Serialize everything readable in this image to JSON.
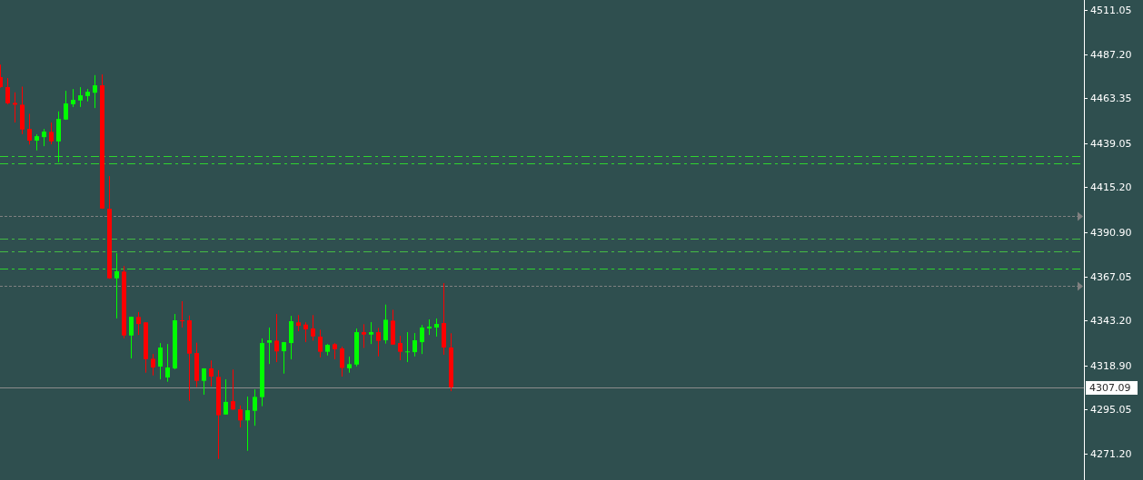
{
  "chart_data": {
    "type": "candlestick",
    "categories": [
      null,
      null,
      null,
      null,
      null,
      null,
      null,
      null,
      null,
      null,
      null,
      null,
      null,
      null,
      null,
      null,
      null,
      null,
      null,
      null,
      null,
      null,
      null,
      null,
      null,
      null,
      null,
      null,
      null,
      null,
      null,
      null,
      null,
      null,
      null,
      null,
      null,
      null,
      null,
      null,
      null,
      null,
      null,
      null,
      null,
      null,
      null,
      null,
      null,
      null,
      null,
      null,
      null,
      null,
      null,
      null,
      null,
      null,
      null,
      null,
      null,
      null,
      null,
      null,
      null,
      null,
      null,
      null,
      null,
      null,
      null,
      null,
      null,
      null,
      null,
      null,
      null,
      null,
      null,
      null,
      null,
      null,
      null,
      null,
      null,
      null,
      null,
      null,
      null,
      null,
      null,
      null,
      null,
      null,
      null,
      null,
      null,
      null,
      null,
      null,
      null,
      null,
      null,
      null,
      null,
      null,
      null,
      null,
      null,
      null,
      null,
      null,
      null,
      null,
      null,
      null,
      null,
      null,
      null,
      null,
      null,
      null,
      null,
      null,
      null,
      null,
      null,
      null,
      null,
      null,
      null,
      null,
      null,
      null,
      null,
      null,
      null,
      null,
      null,
      null,
      null,
      null,
      null,
      null,
      null,
      null,
      null,
      null,
      null,
      null
    ],
    "ohlc": [
      [
        4474.7,
        4481.5,
        4469.0,
        4469.4
      ],
      [
        4469.3,
        4474.2,
        4460.0,
        4460.6
      ],
      [
        4460.8,
        4466.5,
        4450.2,
        4459.8
      ],
      [
        4459.8,
        4469.6,
        4443.9,
        4446.4
      ],
      [
        4446.7,
        4454.9,
        4438.3,
        4440.4
      ],
      [
        4440.4,
        4443.8,
        4435.1,
        4442.8
      ],
      [
        4442.3,
        4446.7,
        4437.4,
        4445.3
      ],
      [
        4445.1,
        4450.2,
        4438.4,
        4440.0
      ],
      [
        4440.0,
        4456.2,
        4428.6,
        4452.1
      ],
      [
        4451.8,
        4467.3,
        4451.6,
        4460.5
      ],
      [
        4460.1,
        4468.3,
        4458.6,
        4462.4
      ],
      [
        4462.1,
        4469.3,
        4458.6,
        4464.9
      ],
      [
        4464.5,
        4468.3,
        4461.6,
        4466.8
      ],
      [
        4466.3,
        4475.8,
        4458.0,
        4470.3
      ],
      [
        4470.3,
        4476.2,
        4403.5,
        4403.7
      ],
      [
        4403.6,
        4421.2,
        4365.7,
        4366.0
      ],
      [
        4366.0,
        4379.6,
        4344.3,
        4369.8
      ],
      [
        4369.6,
        4372.6,
        4333.6,
        4335.1
      ],
      [
        4335.1,
        4345.3,
        4322.7,
        4345.2
      ],
      [
        4345.1,
        4347.8,
        4335.4,
        4341.3
      ],
      [
        4342.2,
        4342.3,
        4315.0,
        4322.3
      ],
      [
        4322.5,
        4325.1,
        4313.5,
        4317.8
      ],
      [
        4318.3,
        4331.0,
        4311.4,
        4328.6
      ],
      [
        4312.4,
        4330.5,
        4310.1,
        4317.8
      ],
      [
        4317.3,
        4346.7,
        4316.8,
        4343.3
      ],
      [
        4343.3,
        4353.6,
        4339.4,
        4342.8
      ],
      [
        4343.3,
        4345.9,
        4299.8,
        4325.3
      ],
      [
        4325.6,
        4331.2,
        4307.2,
        4310.6
      ],
      [
        4310.6,
        4317.4,
        4303.1,
        4317.3
      ],
      [
        4317.3,
        4321.6,
        4307.5,
        4312.9
      ],
      [
        4312.7,
        4316.3,
        4268.4,
        4292.0
      ],
      [
        4292.4,
        4311.4,
        4292.3,
        4299.2
      ],
      [
        4299.6,
        4316.7,
        4294.9,
        4295.1
      ],
      [
        4295.2,
        4297.3,
        4285.4,
        4289.2
      ],
      [
        4289.2,
        4302.1,
        4272.8,
        4294.7
      ],
      [
        4294.4,
        4306.0,
        4286.3,
        4301.9
      ],
      [
        4301.8,
        4333.5,
        4296.9,
        4331.0
      ],
      [
        4331.2,
        4339.4,
        4319.7,
        4332.5
      ],
      [
        4332.3,
        4346.7,
        4320.7,
        4326.5
      ],
      [
        4326.6,
        4331.6,
        4314.5,
        4331.5
      ],
      [
        4331.0,
        4345.7,
        4322.2,
        4342.8
      ],
      [
        4342.2,
        4346.1,
        4337.4,
        4340.3
      ],
      [
        4341.0,
        4342.2,
        4331.5,
        4338.4
      ],
      [
        4338.9,
        4346.1,
        4332.3,
        4334.6
      ],
      [
        4334.5,
        4338.2,
        4323.3,
        4326.3
      ],
      [
        4326.3,
        4330.5,
        4324.3,
        4330.0
      ],
      [
        4330.4,
        4331.0,
        4322.3,
        4327.7
      ],
      [
        4328.1,
        4329.1,
        4312.9,
        4317.6
      ],
      [
        4317.4,
        4323.7,
        4315.0,
        4319.6
      ],
      [
        4319.4,
        4338.9,
        4318.4,
        4336.9
      ],
      [
        4336.9,
        4341.2,
        4328.4,
        4335.6
      ],
      [
        4335.6,
        4342.3,
        4330.5,
        4336.9
      ],
      [
        4336.9,
        4339.2,
        4323.8,
        4332.2
      ],
      [
        4332.5,
        4351.8,
        4330.7,
        4343.6
      ],
      [
        4343.1,
        4349.0,
        4330.1,
        4330.2
      ],
      [
        4331.0,
        4334.9,
        4321.7,
        4326.3
      ],
      [
        4326.1,
        4336.9,
        4320.7,
        4326.5
      ],
      [
        4326.1,
        4336.4,
        4323.8,
        4332.5
      ],
      [
        4331.5,
        4340.8,
        4325.1,
        4339.4
      ],
      [
        4338.9,
        4343.8,
        4335.4,
        4339.9
      ],
      [
        4339.4,
        4344.3,
        4334.5,
        4341.3
      ],
      [
        4341.8,
        4363.4,
        4324.7,
        4328.6
      ],
      [
        4328.6,
        4336.3,
        4305.0,
        4307.09
      ],
      null,
      null,
      null,
      null,
      null,
      null,
      null,
      null,
      null,
      null,
      null,
      null,
      null,
      null,
      null,
      null,
      null,
      null,
      null,
      null,
      null,
      null,
      null,
      null,
      null,
      null,
      null,
      null,
      null,
      null,
      null,
      null,
      null,
      null,
      null,
      null,
      null,
      null,
      null,
      null,
      null,
      null,
      null,
      null,
      null,
      null,
      null,
      null,
      null,
      null,
      null,
      null,
      null,
      null,
      null,
      null,
      null,
      null,
      null,
      null,
      null,
      null,
      null,
      null,
      null,
      null,
      null,
      null,
      null,
      null,
      null,
      null,
      null,
      null,
      null,
      null,
      null,
      null,
      null,
      null,
      null,
      null,
      null,
      null,
      null,
      null,
      null
    ],
    "colors": [
      "#ff0000",
      "#ff0000",
      "#ff0000",
      "#ff0000",
      "#ff0000",
      "#00ff00",
      "#00ff00",
      "#ff0000",
      "#00ff00",
      "#00ff00",
      "#00ff00",
      "#00ff00",
      "#00ff00",
      "#00ff00",
      "#ff0000",
      "#ff0000",
      "#00ff00",
      "#ff0000",
      "#00ff00",
      "#ff0000",
      "#ff0000",
      "#ff0000",
      "#00ff00",
      "#00ff00",
      "#00ff00",
      "#ff0000",
      "#ff0000",
      "#ff0000",
      "#00ff00",
      "#ff0000",
      "#ff0000",
      "#00ff00",
      "#ff0000",
      "#ff0000",
      "#00ff00",
      "#00ff00",
      "#00ff00",
      "#00ff00",
      "#ff0000",
      "#00ff00",
      "#00ff00",
      "#ff0000",
      "#ff0000",
      "#ff0000",
      "#ff0000",
      "#00ff00",
      "#ff0000",
      "#ff0000",
      "#00ff00",
      "#00ff00",
      "#ff0000",
      "#00ff00",
      "#ff0000",
      "#00ff00",
      "#ff0000",
      "#ff0000",
      "#00ff00",
      "#00ff00",
      "#00ff00",
      "#00ff00",
      "#00ff00",
      "#ff0000",
      "#ff0000",
      null,
      null,
      null,
      null,
      null,
      null,
      null,
      null,
      null,
      null,
      null,
      null,
      null,
      null,
      null,
      null,
      null,
      null,
      null,
      null,
      null,
      null,
      null,
      null,
      null,
      null,
      null,
      null,
      null,
      null,
      null,
      null,
      null,
      null,
      null,
      null,
      null,
      null,
      null,
      null,
      null,
      null,
      null,
      null,
      null,
      null,
      null,
      null,
      null,
      null,
      null,
      null,
      null,
      null,
      null,
      null,
      null,
      null,
      null,
      null,
      null,
      null,
      null,
      null,
      null,
      null,
      null,
      null,
      null,
      null,
      null,
      null,
      null,
      null,
      null,
      null,
      null,
      null,
      null,
      null,
      null,
      null,
      null,
      null,
      null,
      null,
      null
    ],
    "ylim": [
      4257.0,
      4516.4
    ],
    "yticks": [
      4511.05,
      {
        "value": 4487.2,
        "label": "4487.20"
      },
      4463.35,
      4439.05,
      {
        "value": 4415.2,
        "label": "4415.20"
      },
      {
        "value": 4390.9,
        "label": "4390.90"
      },
      4367.05,
      {
        "value": 4343.2,
        "label": "4343.20"
      },
      {
        "value": 4318.9,
        "label": "4318.90"
      },
      4295.05,
      {
        "value": 4271.2,
        "label": "4271.20"
      }
    ],
    "tick_labels": "y",
    "ref_lines": [
      {
        "axis": "y",
        "value": 4431.9,
        "color": "#2fd42f",
        "line_style": "dashed"
      },
      {
        "axis": "y",
        "value": 4428.0,
        "color": "#2fd42f",
        "line_style": "dashed"
      },
      {
        "axis": "y",
        "value": 4387.3,
        "color": "#44bb44",
        "line_style": "dashed"
      },
      {
        "axis": "y",
        "value": 4380.4,
        "color": "#44bb44",
        "line_style": "dashed"
      },
      {
        "axis": "y",
        "value": 4371.1,
        "color": "#2fd42f",
        "line_style": "dashed"
      },
      {
        "axis": "y",
        "value": 4307.09,
        "label": "4307.09",
        "color": "#8c8c8c",
        "line_style": "solid"
      },
      {
        "axis": "y",
        "value": 4399.8,
        "color": "#808080",
        "line_style": "dotted"
      },
      {
        "axis": "y",
        "value": 4361.8,
        "color": "#808080",
        "line_style": "dotted"
      }
    ]
  }
}
